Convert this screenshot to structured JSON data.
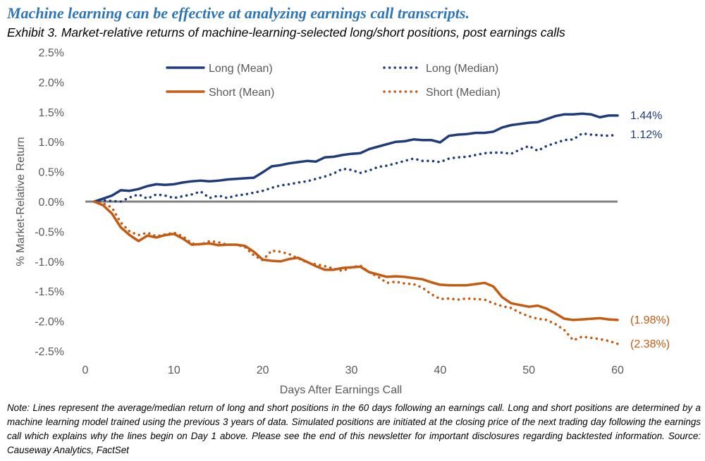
{
  "headline": "Machine learning can be effective at analyzing earnings call transcripts.",
  "subtitle": "Exhibit 3. Market-relative returns of machine-learning-selected long/short positions, post earnings calls",
  "note": "Note: Lines represent the average/median return of long and short positions in the 60 days following an earnings call.  Long and short positions are determined by a machine learning model trained using the previous 3 years of data.  Simulated positions are initiated at the closing price of the next trading day following the earnings call which explains why the lines begin on Day 1 above.  Please see the end of this newsletter for important disclosures regarding backtested information.  Source: Causeway Analytics, FactSet",
  "chart_data": {
    "type": "line",
    "xlabel": "Days After Earnings Call",
    "ylabel": "% Market-Relative Return",
    "xlim": [
      0,
      60
    ],
    "ylim": [
      -2.5,
      2.5
    ],
    "x_ticks": [
      0,
      10,
      20,
      30,
      40,
      50,
      60
    ],
    "x_tick_labels": [
      "0",
      "10",
      "20",
      "30",
      "40",
      "50",
      "60"
    ],
    "y_ticks": [
      2.5,
      2.0,
      1.5,
      1.0,
      0.5,
      0.0,
      -0.5,
      -1.0,
      -1.5,
      -2.0,
      -2.5
    ],
    "y_tick_labels": [
      "2.5%",
      "2.0%",
      "1.5%",
      "1.0%",
      "0.5%",
      "0.0%",
      "-0.5%",
      "-1.0%",
      "-1.5%",
      "-2.0%",
      "-2.5%"
    ],
    "grid": false,
    "zero_line": true,
    "legend_position": "top",
    "x": [
      1,
      2,
      3,
      4,
      5,
      6,
      7,
      8,
      9,
      10,
      11,
      12,
      13,
      14,
      15,
      16,
      17,
      18,
      19,
      20,
      21,
      22,
      23,
      24,
      25,
      26,
      27,
      28,
      29,
      30,
      31,
      32,
      33,
      34,
      35,
      36,
      37,
      38,
      39,
      40,
      41,
      42,
      43,
      44,
      45,
      46,
      47,
      48,
      49,
      50,
      51,
      52,
      53,
      54,
      55,
      56,
      57,
      58,
      59,
      60
    ],
    "series": [
      {
        "name": "Long (Mean)",
        "color": "#1f3b7a",
        "style": "solid",
        "end_label": "1.44%",
        "values": [
          0.0,
          0.05,
          0.1,
          0.19,
          0.18,
          0.21,
          0.26,
          0.29,
          0.28,
          0.29,
          0.32,
          0.34,
          0.35,
          0.34,
          0.35,
          0.37,
          0.38,
          0.39,
          0.4,
          0.49,
          0.59,
          0.61,
          0.64,
          0.66,
          0.68,
          0.67,
          0.74,
          0.75,
          0.78,
          0.8,
          0.81,
          0.88,
          0.92,
          0.96,
          1.0,
          1.01,
          1.04,
          1.03,
          1.03,
          0.99,
          1.1,
          1.12,
          1.13,
          1.15,
          1.15,
          1.17,
          1.24,
          1.28,
          1.3,
          1.32,
          1.33,
          1.38,
          1.43,
          1.46,
          1.46,
          1.47,
          1.46,
          1.41,
          1.44,
          1.44
        ]
      },
      {
        "name": "Long (Median)",
        "color": "#1f3b7a",
        "style": "dotted",
        "end_label": "1.12%",
        "values": [
          0.0,
          0.02,
          0.01,
          0.0,
          0.07,
          0.12,
          0.05,
          0.12,
          0.1,
          0.06,
          0.09,
          0.12,
          0.17,
          0.06,
          0.1,
          0.06,
          0.1,
          0.12,
          0.15,
          0.18,
          0.23,
          0.27,
          0.29,
          0.32,
          0.34,
          0.38,
          0.42,
          0.47,
          0.55,
          0.53,
          0.48,
          0.52,
          0.58,
          0.6,
          0.64,
          0.68,
          0.72,
          0.68,
          0.68,
          0.66,
          0.72,
          0.74,
          0.75,
          0.78,
          0.81,
          0.82,
          0.82,
          0.8,
          0.87,
          0.93,
          0.85,
          0.93,
          0.98,
          1.03,
          1.04,
          1.14,
          1.12,
          1.11,
          1.1,
          1.12
        ]
      },
      {
        "name": "Short (Mean)",
        "color": "#c55a11",
        "style": "solid",
        "end_label": "(1.98%)",
        "values": [
          0.0,
          -0.06,
          -0.2,
          -0.43,
          -0.56,
          -0.66,
          -0.57,
          -0.6,
          -0.56,
          -0.54,
          -0.62,
          -0.72,
          -0.71,
          -0.7,
          -0.73,
          -0.72,
          -0.72,
          -0.74,
          -0.84,
          -0.97,
          -0.99,
          -1.0,
          -0.96,
          -0.94,
          -1.01,
          -1.08,
          -1.14,
          -1.14,
          -1.11,
          -1.1,
          -1.09,
          -1.18,
          -1.22,
          -1.26,
          -1.25,
          -1.26,
          -1.28,
          -1.3,
          -1.35,
          -1.39,
          -1.4,
          -1.4,
          -1.4,
          -1.38,
          -1.36,
          -1.42,
          -1.6,
          -1.7,
          -1.73,
          -1.76,
          -1.74,
          -1.79,
          -1.87,
          -1.96,
          -1.98,
          -1.97,
          -1.96,
          -1.95,
          -1.97,
          -1.98
        ]
      },
      {
        "name": "Short (Median)",
        "color": "#c55a11",
        "style": "dotted",
        "end_label": "(2.38%)",
        "values": [
          0.0,
          -0.03,
          -0.1,
          -0.35,
          -0.5,
          -0.56,
          -0.52,
          -0.58,
          -0.55,
          -0.52,
          -0.58,
          -0.7,
          -0.72,
          -0.66,
          -0.68,
          -0.72,
          -0.72,
          -0.76,
          -0.9,
          -0.98,
          -0.82,
          -0.84,
          -0.88,
          -0.95,
          -1.02,
          -1.05,
          -1.08,
          -1.12,
          -1.16,
          -1.1,
          -1.07,
          -1.18,
          -1.26,
          -1.36,
          -1.34,
          -1.37,
          -1.38,
          -1.44,
          -1.55,
          -1.63,
          -1.62,
          -1.64,
          -1.62,
          -1.63,
          -1.64,
          -1.7,
          -1.75,
          -1.78,
          -1.86,
          -1.92,
          -1.96,
          -1.98,
          -2.05,
          -2.15,
          -2.32,
          -2.26,
          -2.28,
          -2.3,
          -2.33,
          -2.38
        ]
      }
    ]
  }
}
